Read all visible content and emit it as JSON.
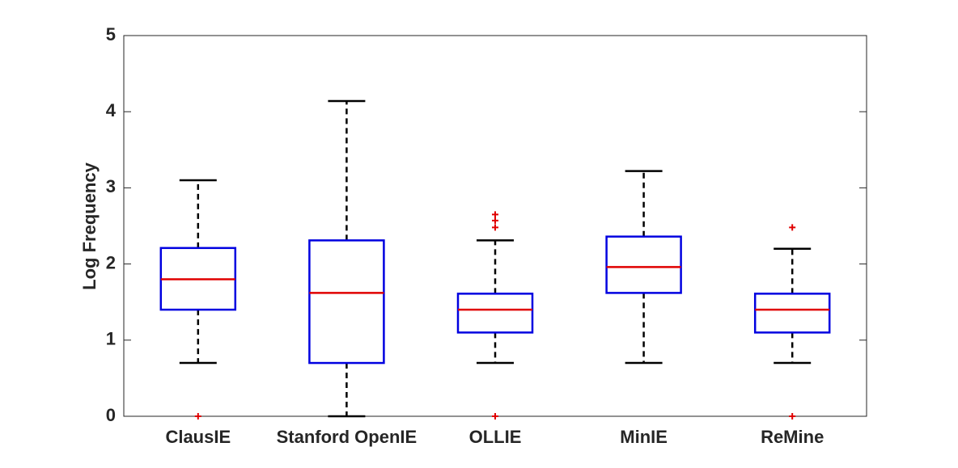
{
  "chart_data": {
    "type": "box",
    "y_label": "Log Frequency",
    "categories": [
      "ClausIE",
      "Stanford OpenIE",
      "OLLIE",
      "MinIE",
      "ReMine"
    ],
    "boxes": [
      {
        "min": 0.7,
        "q1": 1.4,
        "median": 1.8,
        "q3": 2.21,
        "max": 3.1,
        "outliers": [
          0
        ]
      },
      {
        "min": 0,
        "q1": 0.7,
        "median": 1.62,
        "q3": 2.31,
        "max": 4.14,
        "outliers": []
      },
      {
        "min": 0.7,
        "q1": 1.1,
        "median": 1.4,
        "q3": 1.61,
        "max": 2.31,
        "outliers": [
          0,
          2.48,
          2.57,
          2.65
        ]
      },
      {
        "min": 0.7,
        "q1": 1.62,
        "median": 1.96,
        "q3": 2.36,
        "max": 3.22,
        "outliers": []
      },
      {
        "min": 0.7,
        "q1": 1.1,
        "median": 1.4,
        "q3": 1.61,
        "max": 2.2,
        "outliers": [
          0,
          2.48
        ]
      }
    ],
    "box_color": "#0000e0",
    "median_color": "#e00000",
    "whisker_color": "#000000",
    "outlier_color": "#e00000",
    "ylim": [
      0,
      5
    ],
    "yticks": [
      0,
      1,
      2,
      3,
      4,
      5
    ]
  }
}
